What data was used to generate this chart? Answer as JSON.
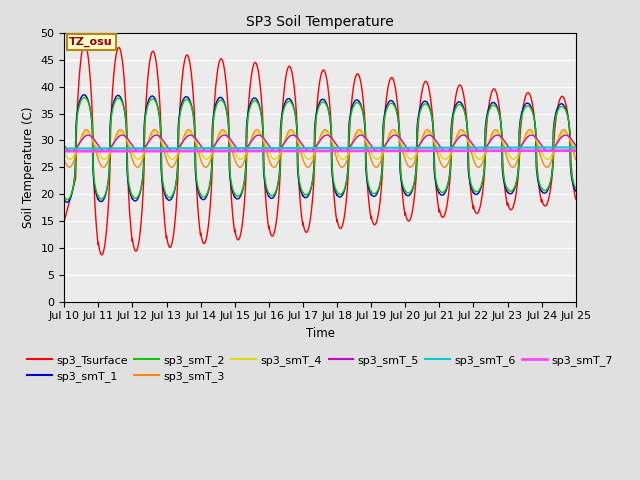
{
  "title": "SP3 Soil Temperature",
  "xlabel": "Time",
  "ylabel": "Soil Temperature (C)",
  "ylim": [
    0,
    50
  ],
  "tz_label": "TZ_osu",
  "bg_color": "#e0e0e0",
  "plot_bg_color": "#ebebeb",
  "x_tick_labels": [
    "Jul 10",
    "Jul 11",
    "Jul 12",
    "Jul 13",
    "Jul 14",
    "Jul 15",
    "Jul 16",
    "Jul 17",
    "Jul 18",
    "Jul 19",
    "Jul 20",
    "Jul 21",
    "Jul 22",
    "Jul 23",
    "Jul 24",
    "Jul 25"
  ],
  "series_colors": {
    "sp3_Tsurface": "#ff0000",
    "sp3_smT_1": "#0000cc",
    "sp3_smT_2": "#00cc00",
    "sp3_smT_3": "#ff8800",
    "sp3_smT_4": "#dddd00",
    "sp3_smT_5": "#cc00cc",
    "sp3_smT_6": "#00cccc",
    "sp3_smT_7": "#ff44ff"
  },
  "n_days": 15,
  "ppd": 288,
  "legend_order": [
    "sp3_Tsurface",
    "sp3_smT_1",
    "sp3_smT_2",
    "sp3_smT_3",
    "sp3_smT_4",
    "sp3_smT_5",
    "sp3_smT_6",
    "sp3_smT_7"
  ]
}
